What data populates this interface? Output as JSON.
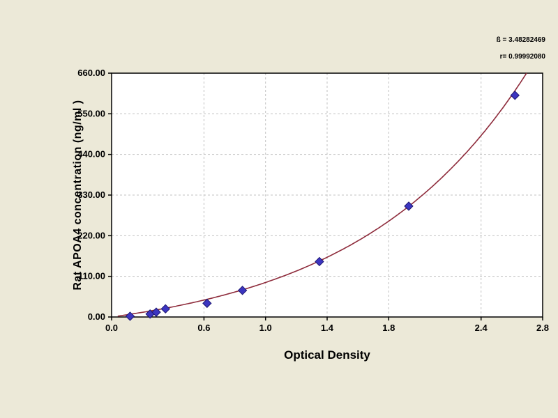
{
  "colors": {
    "background": "#ECE9D8",
    "plot_background": "#FFFFFF",
    "grid": "#C0C0C0",
    "axis": "#000000",
    "curve": "#8E2B3B",
    "point_fill": "#3C35C0",
    "point_stroke": "#1C1670",
    "text": "#000000"
  },
  "annotations": {
    "line1": "ß = 3.48282469",
    "line2": "r= 0.99992080"
  },
  "chart_data": {
    "type": "scatter",
    "title": "",
    "xlabel": "Optical Density",
    "ylabel": "Rat APOA4 concentration (ng/ml )",
    "xlim": [
      0,
      2.8
    ],
    "ylim": [
      0,
      660
    ],
    "grid": true,
    "legend": false,
    "x_ticks": [
      0.0,
      0.6,
      1.0,
      1.4,
      1.8,
      2.4,
      2.8
    ],
    "x_tick_labels": [
      "0.0",
      "0.6",
      "1.0",
      "1.4",
      "1.8",
      "2.4",
      "2.8"
    ],
    "y_ticks": [
      0,
      110,
      220,
      330,
      440,
      550,
      660
    ],
    "y_tick_labels": [
      "0.00",
      "110.00",
      "220.00",
      "330.00",
      "440.00",
      "550.00",
      "660.00"
    ],
    "points": [
      {
        "x": 0.12,
        "y": 2
      },
      {
        "x": 0.25,
        "y": 8
      },
      {
        "x": 0.29,
        "y": 13
      },
      {
        "x": 0.35,
        "y": 22
      },
      {
        "x": 0.62,
        "y": 37
      },
      {
        "x": 0.85,
        "y": 72
      },
      {
        "x": 1.35,
        "y": 150
      },
      {
        "x": 1.93,
        "y": 300
      },
      {
        "x": 2.62,
        "y": 600
      }
    ],
    "curve_fit": {
      "model": "y = a*(exp(b*x)-1)",
      "a": 64,
      "b": 0.9,
      "x_start": 0.04,
      "x_end": 2.78
    }
  }
}
